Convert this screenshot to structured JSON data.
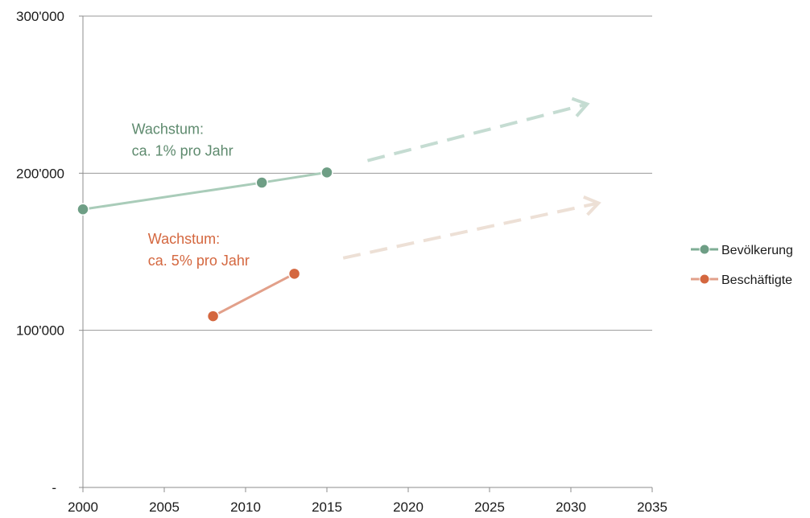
{
  "chart_data": {
    "type": "line",
    "x": [
      2000,
      2005,
      2010,
      2015,
      2020,
      2025,
      2030,
      2035
    ],
    "xlim": [
      2000,
      2035
    ],
    "ylim": [
      0,
      300000
    ],
    "y_ticks": [
      {
        "value": 0,
        "label": "-"
      },
      {
        "value": 100000,
        "label": "100'000"
      },
      {
        "value": 200000,
        "label": "200'000"
      },
      {
        "value": 300000,
        "label": "300'000"
      }
    ],
    "x_tick_labels": [
      "2000",
      "2005",
      "2010",
      "2015",
      "2020",
      "2025",
      "2030",
      "2035"
    ],
    "grid": "horizontal",
    "legend_position": "right",
    "series": [
      {
        "name": "Bevölkerung",
        "color": "#6e9e85",
        "points": [
          {
            "x": 2000,
            "y": 177000
          },
          {
            "x": 2011,
            "y": 194000
          },
          {
            "x": 2015,
            "y": 200500
          }
        ],
        "projection": {
          "from": {
            "x": 2017.5,
            "y": 208000
          },
          "to": {
            "x": 2031,
            "y": 244000
          },
          "color": "#c5dcd2"
        }
      },
      {
        "name": "Beschäftigte",
        "color": "#d4673f",
        "points": [
          {
            "x": 2008,
            "y": 109000
          },
          {
            "x": 2013,
            "y": 136000
          }
        ],
        "projection": {
          "from": {
            "x": 2016,
            "y": 146000
          },
          "to": {
            "x": 2031.7,
            "y": 181000
          },
          "color": "#ede0d6"
        }
      }
    ],
    "annotations": [
      {
        "lines": [
          "Wachstum:",
          "ca. 1% pro Jahr"
        ],
        "color": "#5e8a6e",
        "x": 2003,
        "y": 225000
      },
      {
        "lines": [
          "Wachstum:",
          "ca. 5% pro Jahr"
        ],
        "color": "#d4673f",
        "x": 2004,
        "y": 155000
      }
    ]
  }
}
